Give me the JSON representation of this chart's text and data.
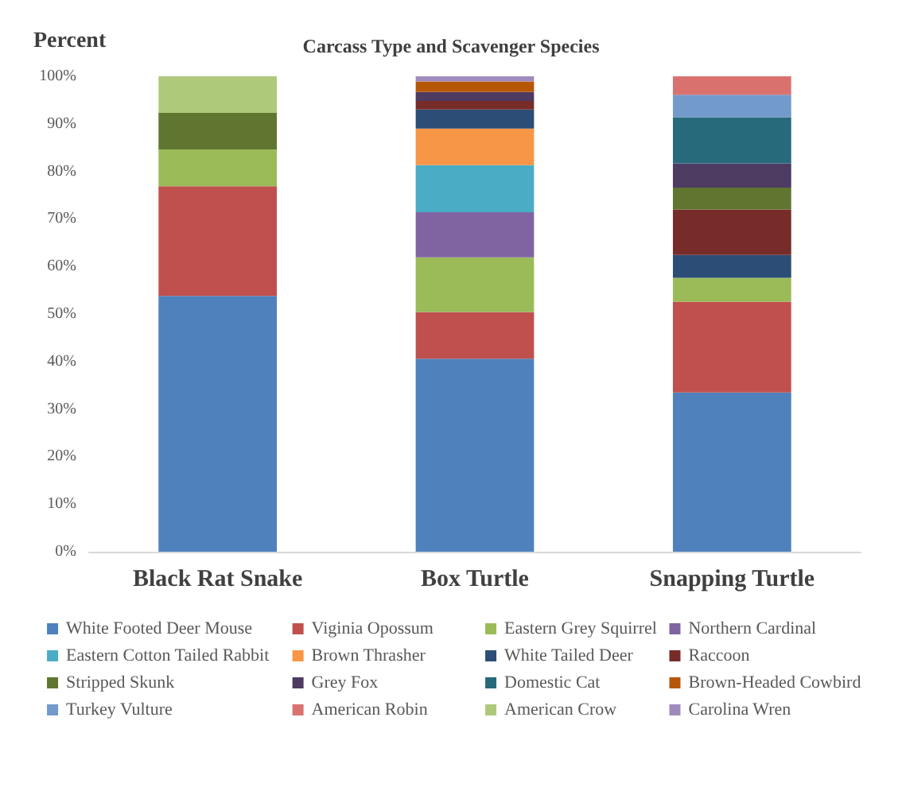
{
  "chart_data": {
    "type": "bar",
    "stacked": true,
    "title": "Carcass Type and Scavenger Species",
    "ylabel": "Percent",
    "categories": [
      "Black Rat Snake",
      "Box Turtle",
      "Snapping Turtle"
    ],
    "series": [
      {
        "name": "White Footed Deer Mouse",
        "color": "#4f81bd",
        "values": [
          53.8,
          40.6,
          33.5
        ]
      },
      {
        "name": "Viginia Opossum",
        "color": "#c0504d",
        "values": [
          23.1,
          9.8,
          19.1
        ]
      },
      {
        "name": "Eastern Grey Squirrel",
        "color": "#9bbb59",
        "values": [
          7.7,
          11.5,
          5.0
        ]
      },
      {
        "name": "Northern Cardinal",
        "color": "#8064a2",
        "values": [
          0,
          9.5,
          0
        ]
      },
      {
        "name": "Eastern Cotton Tailed Rabbit",
        "color": "#4bacc6",
        "values": [
          0,
          9.9,
          0
        ]
      },
      {
        "name": "Brown Thrasher",
        "color": "#f79646",
        "values": [
          0,
          7.7,
          0
        ]
      },
      {
        "name": "White Tailed Deer",
        "color": "#2c4d75",
        "values": [
          0,
          4.0,
          4.8
        ]
      },
      {
        "name": "Raccoon",
        "color": "#772c2a",
        "values": [
          0,
          1.8,
          9.6
        ]
      },
      {
        "name": "Stripped Skunk",
        "color": "#5f7530",
        "values": [
          7.7,
          0,
          4.6
        ]
      },
      {
        "name": "Grey Fox",
        "color": "#4d3b62",
        "values": [
          0,
          1.9,
          5.1
        ]
      },
      {
        "name": "Domestic Cat",
        "color": "#276a7c",
        "values": [
          0,
          0,
          9.7
        ]
      },
      {
        "name": "Brown-Headed Cowbird",
        "color": "#b65708",
        "values": [
          0,
          2.2,
          0
        ]
      },
      {
        "name": "Turkey Vulture",
        "color": "#729aca",
        "values": [
          0,
          0,
          4.7
        ]
      },
      {
        "name": "American Robin",
        "color": "#d9726f",
        "values": [
          0,
          0,
          3.9
        ]
      },
      {
        "name": "American Crow",
        "color": "#afc97a",
        "values": [
          7.7,
          0,
          0
        ]
      },
      {
        "name": "Carolina Wren",
        "color": "#a18bbc",
        "values": [
          0,
          1.1,
          0
        ]
      }
    ],
    "ylim": [
      0,
      100
    ],
    "yticks": [
      {
        "value": 0,
        "label": "0%"
      },
      {
        "value": 10,
        "label": "10%"
      },
      {
        "value": 20,
        "label": "20%"
      },
      {
        "value": 30,
        "label": "30%"
      },
      {
        "value": 40,
        "label": "40%"
      },
      {
        "value": 50,
        "label": "50%"
      },
      {
        "value": 60,
        "label": "60%"
      },
      {
        "value": 70,
        "label": "70%"
      },
      {
        "value": 80,
        "label": "80%"
      },
      {
        "value": 90,
        "label": "90%"
      },
      {
        "value": 100,
        "label": "100%"
      }
    ],
    "grid": false,
    "legend": "bottom"
  }
}
